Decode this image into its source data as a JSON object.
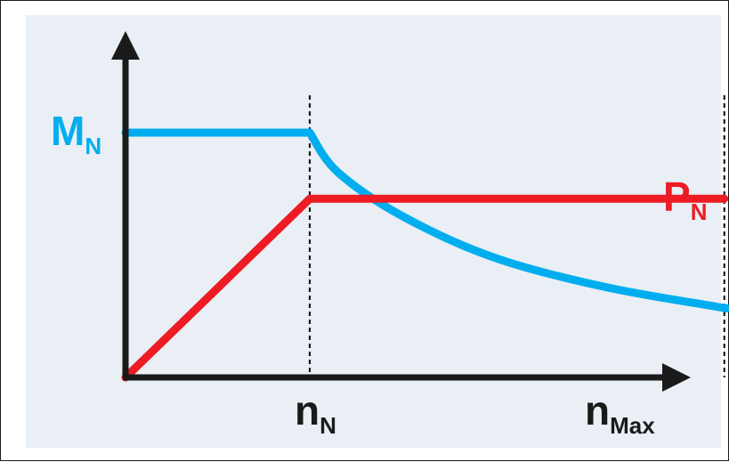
{
  "chart_data": {
    "type": "line",
    "x_ticks": [
      {
        "main": "n",
        "sub": "N"
      },
      {
        "main": "n",
        "sub": "Max"
      }
    ],
    "series": [
      {
        "label": {
          "main": "M",
          "sub": "N"
        },
        "color": "#00aeef",
        "points": [
          [
            0,
            1.0
          ],
          [
            1,
            1.0
          ],
          [
            1.15,
            0.84
          ],
          [
            1.5,
            0.66
          ],
          [
            2,
            0.49
          ],
          [
            2.6,
            0.37
          ],
          [
            3.2,
            0.29
          ],
          [
            3.25,
            0.285
          ]
        ]
      },
      {
        "label": {
          "main": "P",
          "sub": "N"
        },
        "color": "#ed1c24",
        "points": [
          [
            0,
            0
          ],
          [
            1,
            0.73
          ],
          [
            3.25,
            0.73
          ]
        ]
      }
    ],
    "x_range": [
      0,
      3.25
    ],
    "y_range": [
      0,
      1.0
    ],
    "background_color": "#e9eff4",
    "axis_color": "#1a1a1a",
    "dashed_guides_at_x": [
      1,
      3.25
    ]
  }
}
